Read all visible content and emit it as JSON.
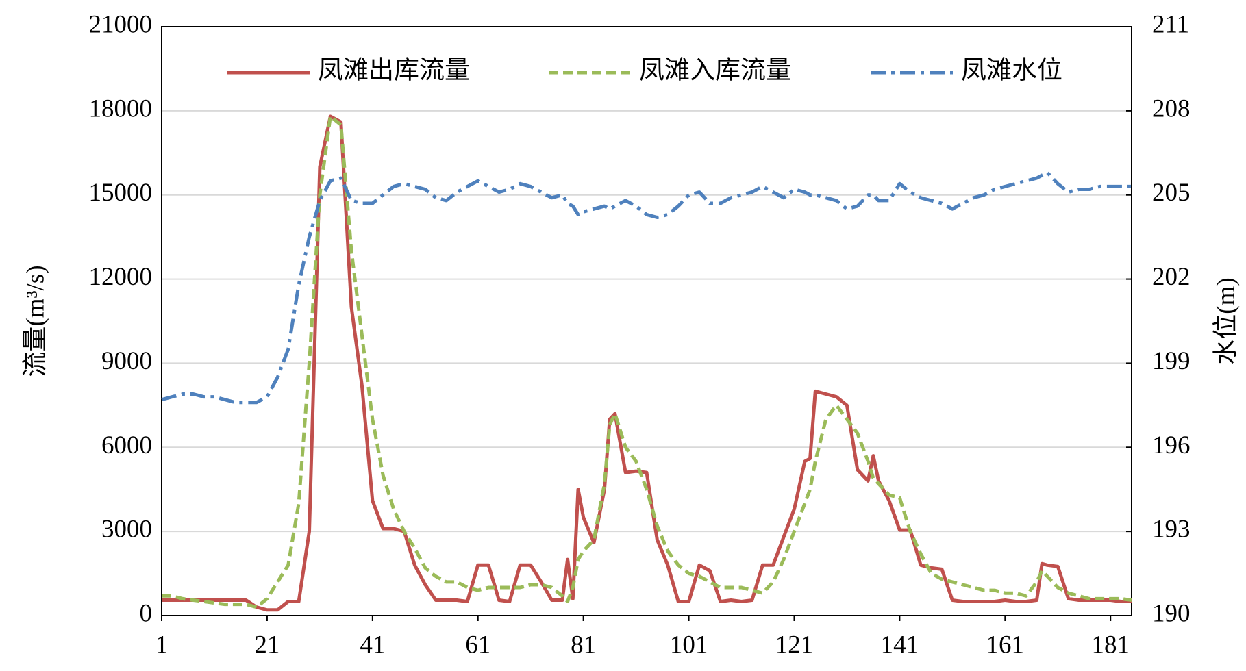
{
  "chart_data": {
    "type": "line",
    "y_label": "流量(m³/s)",
    "y2_label": "水位(m)",
    "xlim": [
      1,
      185
    ],
    "xticks": [
      1,
      21,
      41,
      61,
      81,
      101,
      121,
      141,
      161,
      181
    ],
    "ylim": [
      0,
      21000
    ],
    "yticks": [
      0,
      3000,
      6000,
      9000,
      12000,
      15000,
      18000,
      21000
    ],
    "y2lim": [
      190,
      211
    ],
    "y2ticks": [
      190,
      193,
      196,
      199,
      202,
      205,
      208,
      211
    ],
    "grid": true,
    "legend": "top",
    "x": [
      1,
      3,
      5,
      7,
      9,
      11,
      13,
      15,
      17,
      19,
      21,
      23,
      25,
      27,
      29,
      31,
      33,
      35,
      37,
      39,
      41,
      43,
      45,
      47,
      49,
      51,
      53,
      55,
      57,
      59,
      61,
      63,
      65,
      67,
      69,
      71,
      73,
      75,
      77,
      78,
      79,
      80,
      81,
      83,
      85,
      86,
      87,
      89,
      91,
      93,
      95,
      97,
      99,
      101,
      103,
      105,
      107,
      109,
      111,
      113,
      115,
      117,
      119,
      121,
      123,
      124,
      125,
      127,
      129,
      131,
      133,
      135,
      136,
      137,
      139,
      141,
      143,
      145,
      147,
      149,
      151,
      153,
      155,
      157,
      159,
      161,
      163,
      165,
      167,
      168,
      169,
      171,
      173,
      175,
      177,
      179,
      181,
      183,
      185
    ],
    "series": [
      {
        "name": "凤滩出库流量",
        "color": "#c0504d",
        "style": "solid",
        "axis": "y",
        "values": [
          550,
          550,
          550,
          550,
          550,
          550,
          550,
          550,
          550,
          300,
          200,
          200,
          500,
          500,
          3000,
          16000,
          17800,
          17600,
          11000,
          8200,
          4100,
          3100,
          3100,
          3000,
          1800,
          1100,
          550,
          550,
          550,
          500,
          1800,
          1800,
          550,
          500,
          1800,
          1800,
          1200,
          550,
          550,
          2000,
          600,
          4500,
          3500,
          2600,
          4500,
          7000,
          7200,
          5100,
          5150,
          5100,
          2700,
          1800,
          500,
          500,
          1800,
          1600,
          500,
          550,
          500,
          550,
          1800,
          1800,
          2800,
          3800,
          5500,
          5600,
          8000,
          7900,
          7800,
          7500,
          5200,
          4800,
          5700,
          4800,
          4100,
          3050,
          3050,
          1800,
          1700,
          1650,
          550,
          500,
          500,
          500,
          500,
          550,
          500,
          500,
          550,
          1850,
          1800,
          1750,
          600,
          550,
          550,
          550,
          550,
          500,
          500
        ]
      },
      {
        "name": "凤滩入库流量",
        "color": "#9bbb59",
        "style": "dashed",
        "axis": "y",
        "values": [
          700,
          700,
          600,
          550,
          500,
          450,
          400,
          400,
          400,
          300,
          600,
          1200,
          1800,
          4000,
          9000,
          15000,
          17800,
          17500,
          13000,
          10000,
          7000,
          5000,
          3800,
          3000,
          2400,
          1700,
          1400,
          1200,
          1200,
          1000,
          900,
          1000,
          1000,
          1000,
          1000,
          1100,
          1100,
          1000,
          700,
          500,
          1000,
          2000,
          2300,
          2700,
          4700,
          6800,
          7200,
          6000,
          5500,
          4500,
          3200,
          2300,
          1800,
          1500,
          1400,
          1200,
          1000,
          1000,
          1000,
          900,
          800,
          1200,
          2000,
          3000,
          4000,
          4500,
          5500,
          7000,
          7500,
          7000,
          6500,
          5500,
          4900,
          4700,
          4300,
          4200,
          3000,
          2200,
          1500,
          1300,
          1200,
          1100,
          1000,
          900,
          900,
          800,
          800,
          700,
          1200,
          1600,
          1400,
          1000,
          800,
          700,
          600,
          600,
          600,
          600,
          550
        ]
      },
      {
        "name": "凤滩水位",
        "color": "#4f81bd",
        "style": "dashdot",
        "axis": "y2",
        "values": [
          197.7,
          197.8,
          197.9,
          197.9,
          197.8,
          197.8,
          197.7,
          197.6,
          197.6,
          197.6,
          197.8,
          198.5,
          199.5,
          201.8,
          203.5,
          204.8,
          205.5,
          205.6,
          204.8,
          204.7,
          204.7,
          205.0,
          205.3,
          205.4,
          205.3,
          205.2,
          204.9,
          204.8,
          205.1,
          205.3,
          205.5,
          205.3,
          205.1,
          205.2,
          205.4,
          205.3,
          205.1,
          204.9,
          205.0,
          204.7,
          204.6,
          204.3,
          204.4,
          204.5,
          204.6,
          204.5,
          204.6,
          204.8,
          204.6,
          204.3,
          204.2,
          204.3,
          204.6,
          205.0,
          205.1,
          204.7,
          204.7,
          204.9,
          205.0,
          205.1,
          205.3,
          205.1,
          204.9,
          205.2,
          205.1,
          205.0,
          205.0,
          204.9,
          204.8,
          204.5,
          204.6,
          205.0,
          205.0,
          204.8,
          204.8,
          205.4,
          205.1,
          204.9,
          204.8,
          204.7,
          204.5,
          204.7,
          204.9,
          205.0,
          205.2,
          205.3,
          205.4,
          205.5,
          205.6,
          205.7,
          205.8,
          205.4,
          205.1,
          205.2,
          205.2,
          205.3,
          205.3,
          205.3,
          205.3
        ]
      }
    ]
  }
}
